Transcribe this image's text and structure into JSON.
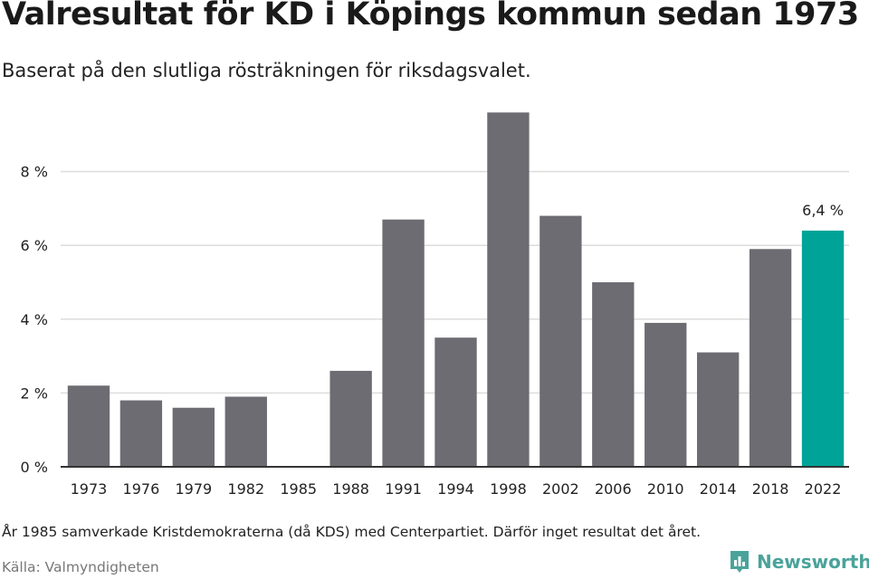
{
  "header": {
    "title": "Valresultat för KD i Köpings kommun sedan 1973",
    "subtitle": "Baserat på den slutliga rösträkningen för riksdagsvalet."
  },
  "footer": {
    "note": "År 1985 samverkade Kristdemokraterna (då KDS) med Centerpartiet. Därför inget resultat det året.",
    "source": "Källa: Valmyndigheten",
    "brand": "Newsworthy",
    "brand_icon": "newsworthy-logo-icon"
  },
  "colors": {
    "bar": "#6d6c72",
    "highlight": "#00a398",
    "grid": "#dddddd",
    "axis": "#333333",
    "brand": "#4aa39a"
  },
  "chart_data": {
    "type": "bar",
    "title": "Valresultat för KD i Köpings kommun sedan 1973",
    "subtitle": "Baserat på den slutliga rösträkningen för riksdagsvalet.",
    "categories": [
      "1973",
      "1976",
      "1979",
      "1982",
      "1985",
      "1988",
      "1991",
      "1994",
      "1998",
      "2002",
      "2006",
      "2010",
      "2014",
      "2018",
      "2022"
    ],
    "values": [
      2.2,
      1.8,
      1.6,
      1.9,
      null,
      2.6,
      6.7,
      3.5,
      9.6,
      6.8,
      5.0,
      3.9,
      3.1,
      5.9,
      6.4
    ],
    "ylim": [
      0,
      10
    ],
    "yticks": [
      0,
      2,
      4,
      6,
      8
    ],
    "ytick_labels": [
      "0 %",
      "2 %",
      "4 %",
      "6 %",
      "8 %"
    ],
    "highlight_index": 14,
    "data_labels": [
      {
        "index": 14,
        "text": "6,4 %"
      }
    ],
    "grid": true,
    "legend": "none"
  }
}
